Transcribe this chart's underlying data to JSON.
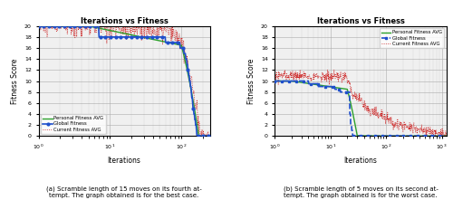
{
  "title": "Iterations vs Fitness",
  "xlabel": "Iterations",
  "ylabel": "Fitness Score",
  "caption_a": "(a) Scramble length of 15 moves on its fourth at-\ntempt. The graph obtained is for the best case.",
  "caption_b": "(b) Scramble length of 5 moves on its second at-\ntempt. The graph obtained is for the worst case.",
  "legend_personal": "Personal Fitness AVG",
  "legend_global": "Global Fitness",
  "legend_current": "Current Fitness AVG",
  "color_personal": "#2ca02c",
  "color_global": "#1f4fcc",
  "color_current": "#cc2222",
  "bg_color": "#f0f0f0"
}
